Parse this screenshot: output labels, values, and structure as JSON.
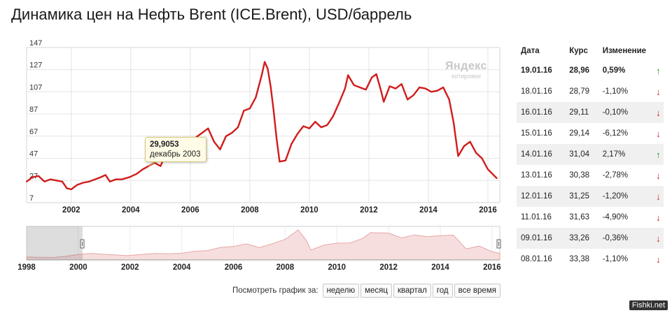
{
  "page": {
    "title": "Динамика цен на Нефть Brent (ICE.Brent), USD/баррель",
    "badge": "Fishki.net"
  },
  "watermark": {
    "logo": "Яндекс",
    "subtitle": "котировки"
  },
  "tooltip": {
    "value": "29,9053",
    "date": "декабрь 2003"
  },
  "periods": {
    "label": "Посмотреть график за:",
    "buttons": [
      "неделю",
      "месяц",
      "квартал",
      "год",
      "все время"
    ]
  },
  "quotes": {
    "headers": [
      "Дата",
      "Курс",
      "Изменение"
    ],
    "rows": [
      {
        "date": "19.01.16",
        "rate": "28,96",
        "change": "0,59%",
        "direction": "up"
      },
      {
        "date": "18.01.16",
        "rate": "28,79",
        "change": "-1,10%",
        "direction": "down"
      },
      {
        "date": "16.01.16",
        "rate": "29,11",
        "change": "-0,10%",
        "direction": "down"
      },
      {
        "date": "15.01.16",
        "rate": "29,14",
        "change": "-6,12%",
        "direction": "down"
      },
      {
        "date": "14.01.16",
        "rate": "31,04",
        "change": "2,17%",
        "direction": "up"
      },
      {
        "date": "13.01.16",
        "rate": "30,38",
        "change": "-2,78%",
        "direction": "down"
      },
      {
        "date": "12.01.16",
        "rate": "31,25",
        "change": "-1,20%",
        "direction": "down"
      },
      {
        "date": "11.01.16",
        "rate": "31,63",
        "change": "-4,90%",
        "direction": "down"
      },
      {
        "date": "09.01.16",
        "rate": "33,26",
        "change": "-0,36%",
        "direction": "down"
      },
      {
        "date": "08.01.16",
        "rate": "33,38",
        "change": "-1,10%",
        "direction": "down"
      }
    ]
  },
  "colors": {
    "line": "#d01c1c",
    "up": "#2e9b2e",
    "down": "#c81e1e",
    "navigator_fill": "#f6dede"
  },
  "chart_data": [
    {
      "type": "line",
      "name": "main",
      "xlim": [
        2000.5,
        2016.4
      ],
      "ylim": [
        7,
        147
      ],
      "yticks": [
        7,
        27,
        47,
        67,
        87,
        107,
        127,
        147
      ],
      "xticks": [
        2002,
        2004,
        2006,
        2008,
        2010,
        2012,
        2014,
        2016
      ],
      "grid": true,
      "points": [
        [
          2000.5,
          26
        ],
        [
          2000.7,
          30
        ],
        [
          2000.9,
          31
        ],
        [
          2001.1,
          26
        ],
        [
          2001.3,
          28
        ],
        [
          2001.5,
          27
        ],
        [
          2001.7,
          26
        ],
        [
          2001.85,
          20
        ],
        [
          2002.0,
          19
        ],
        [
          2002.2,
          23
        ],
        [
          2002.4,
          25
        ],
        [
          2002.6,
          26
        ],
        [
          2002.8,
          28
        ],
        [
          2003.0,
          30
        ],
        [
          2003.15,
          32
        ],
        [
          2003.3,
          26
        ],
        [
          2003.5,
          28
        ],
        [
          2003.7,
          28
        ],
        [
          2003.95,
          29.9
        ],
        [
          2004.2,
          33
        ],
        [
          2004.4,
          37
        ],
        [
          2004.6,
          40
        ],
        [
          2004.8,
          43
        ],
        [
          2005.0,
          40
        ],
        [
          2005.1,
          46
        ],
        [
          2005.3,
          55
        ],
        [
          2005.5,
          57
        ],
        [
          2005.7,
          63
        ],
        [
          2005.85,
          59
        ],
        [
          2006.0,
          58
        ],
        [
          2006.2,
          66
        ],
        [
          2006.4,
          70
        ],
        [
          2006.6,
          74
        ],
        [
          2006.8,
          62
        ],
        [
          2007.0,
          55
        ],
        [
          2007.2,
          67
        ],
        [
          2007.4,
          70
        ],
        [
          2007.6,
          75
        ],
        [
          2007.8,
          90
        ],
        [
          2008.0,
          92
        ],
        [
          2008.2,
          102
        ],
        [
          2008.4,
          122
        ],
        [
          2008.5,
          134
        ],
        [
          2008.6,
          128
        ],
        [
          2008.7,
          112
        ],
        [
          2008.8,
          90
        ],
        [
          2008.9,
          65
        ],
        [
          2009.0,
          44
        ],
        [
          2009.2,
          45
        ],
        [
          2009.4,
          60
        ],
        [
          2009.6,
          69
        ],
        [
          2009.8,
          76
        ],
        [
          2010.0,
          74
        ],
        [
          2010.2,
          80
        ],
        [
          2010.4,
          75
        ],
        [
          2010.6,
          77
        ],
        [
          2010.8,
          85
        ],
        [
          2011.0,
          97
        ],
        [
          2011.2,
          110
        ],
        [
          2011.3,
          122
        ],
        [
          2011.5,
          113
        ],
        [
          2011.7,
          111
        ],
        [
          2011.9,
          109
        ],
        [
          2012.1,
          120
        ],
        [
          2012.25,
          123
        ],
        [
          2012.4,
          109
        ],
        [
          2012.5,
          98
        ],
        [
          2012.7,
          112
        ],
        [
          2012.9,
          110
        ],
        [
          2013.1,
          114
        ],
        [
          2013.3,
          100
        ],
        [
          2013.5,
          104
        ],
        [
          2013.7,
          111
        ],
        [
          2013.9,
          110
        ],
        [
          2014.1,
          107
        ],
        [
          2014.3,
          108
        ],
        [
          2014.5,
          111
        ],
        [
          2014.7,
          100
        ],
        [
          2014.85,
          79
        ],
        [
          2015.0,
          49
        ],
        [
          2015.2,
          58
        ],
        [
          2015.4,
          62
        ],
        [
          2015.6,
          52
        ],
        [
          2015.8,
          47
        ],
        [
          2016.0,
          37
        ],
        [
          2016.15,
          33
        ],
        [
          2016.3,
          29
        ]
      ]
    },
    {
      "type": "area",
      "name": "navigator",
      "xlim": [
        1998,
        2016.3
      ],
      "xticks": [
        1998,
        2000,
        2002,
        2004,
        2006,
        2008,
        2010,
        2012,
        2014,
        2016
      ],
      "grid": true,
      "points": [
        [
          1998,
          13
        ],
        [
          1998.5,
          12
        ],
        [
          1999,
          11
        ],
        [
          1999.5,
          16
        ],
        [
          2000,
          24
        ],
        [
          2000.5,
          29
        ],
        [
          2001,
          25
        ],
        [
          2001.9,
          19
        ],
        [
          2002.5,
          25
        ],
        [
          2003,
          29
        ],
        [
          2003.5,
          27
        ],
        [
          2004,
          30
        ],
        [
          2004.5,
          38
        ],
        [
          2005,
          42
        ],
        [
          2005.5,
          56
        ],
        [
          2006,
          60
        ],
        [
          2006.5,
          72
        ],
        [
          2007,
          55
        ],
        [
          2007.5,
          72
        ],
        [
          2008,
          92
        ],
        [
          2008.5,
          134
        ],
        [
          2008.8,
          90
        ],
        [
          2009,
          44
        ],
        [
          2009.5,
          66
        ],
        [
          2010,
          75
        ],
        [
          2010.5,
          76
        ],
        [
          2011,
          96
        ],
        [
          2011.3,
          122
        ],
        [
          2012,
          120
        ],
        [
          2012.5,
          98
        ],
        [
          2013,
          112
        ],
        [
          2013.5,
          104
        ],
        [
          2014,
          108
        ],
        [
          2014.5,
          111
        ],
        [
          2015,
          49
        ],
        [
          2015.5,
          62
        ],
        [
          2016,
          37
        ],
        [
          2016.3,
          29
        ]
      ]
    }
  ]
}
